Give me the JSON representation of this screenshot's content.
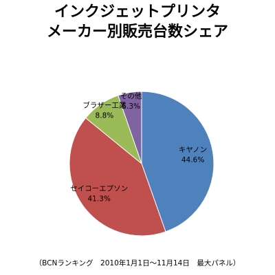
{
  "title_lines": [
    "インクジェットプリンタ",
    "メーカー別販売台数シェア"
  ],
  "source_note": "（BCNランキング　2010年1月1日～11月14日　最大パネル）",
  "chart_data": {
    "type": "pie",
    "title": "インクジェットプリンタ メーカー別販売台数シェア",
    "start": "12 o'clock, clockwise",
    "slices": [
      {
        "name": "キヤノン",
        "value": 44.6,
        "label": "44.6%",
        "color": "#4F81BD"
      },
      {
        "name": "セイコーエプソン",
        "value": 41.3,
        "label": "41.3%",
        "color": "#C0504D"
      },
      {
        "name": "ブラザー工業",
        "value": 8.8,
        "label": "8.8%",
        "color": "#9BBB59"
      },
      {
        "name": "その他",
        "value": 5.3,
        "label": "5.3%",
        "color": "#8064A2"
      }
    ]
  }
}
